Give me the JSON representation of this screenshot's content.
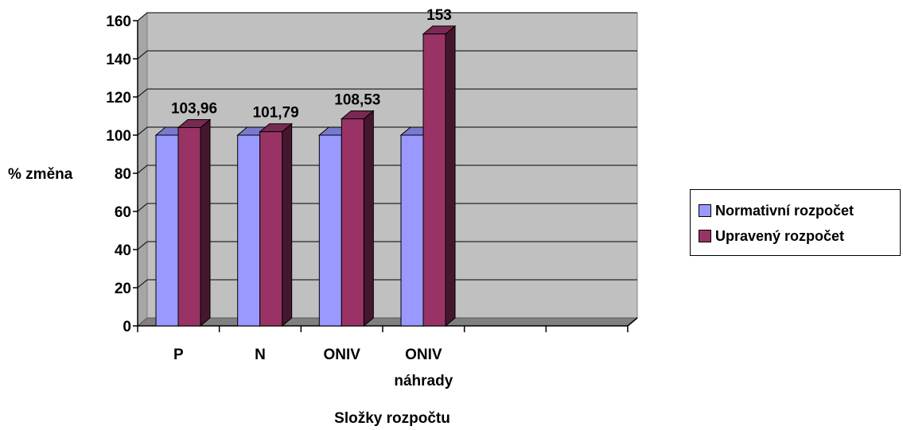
{
  "chart_data": {
    "type": "bar",
    "categories": [
      "P",
      "N",
      "ONIV",
      "ONIV\nnáhrady",
      "",
      ""
    ],
    "series": [
      {
        "name": "Normativní rozpočet",
        "values": [
          100,
          100,
          100,
          100,
          null,
          null
        ],
        "color": "#9999ff",
        "data_labels": [
          null,
          null,
          null,
          null,
          null,
          null
        ]
      },
      {
        "name": "Upravený rozpočet",
        "values": [
          103.96,
          101.79,
          108.53,
          153,
          null,
          null
        ],
        "color": "#993366",
        "data_labels": [
          "103,96",
          "101,79",
          "108,53",
          "153",
          null,
          null
        ]
      }
    ],
    "xlabel": "Složky rozpočtu",
    "ylabel": "% změna",
    "ylim": [
      0,
      160
    ],
    "yticks": [
      "0",
      "20",
      "40",
      "60",
      "80",
      "100",
      "120",
      "140",
      "160"
    ],
    "grid": true,
    "legend": "right",
    "wall_color": "#c0c0c0"
  }
}
